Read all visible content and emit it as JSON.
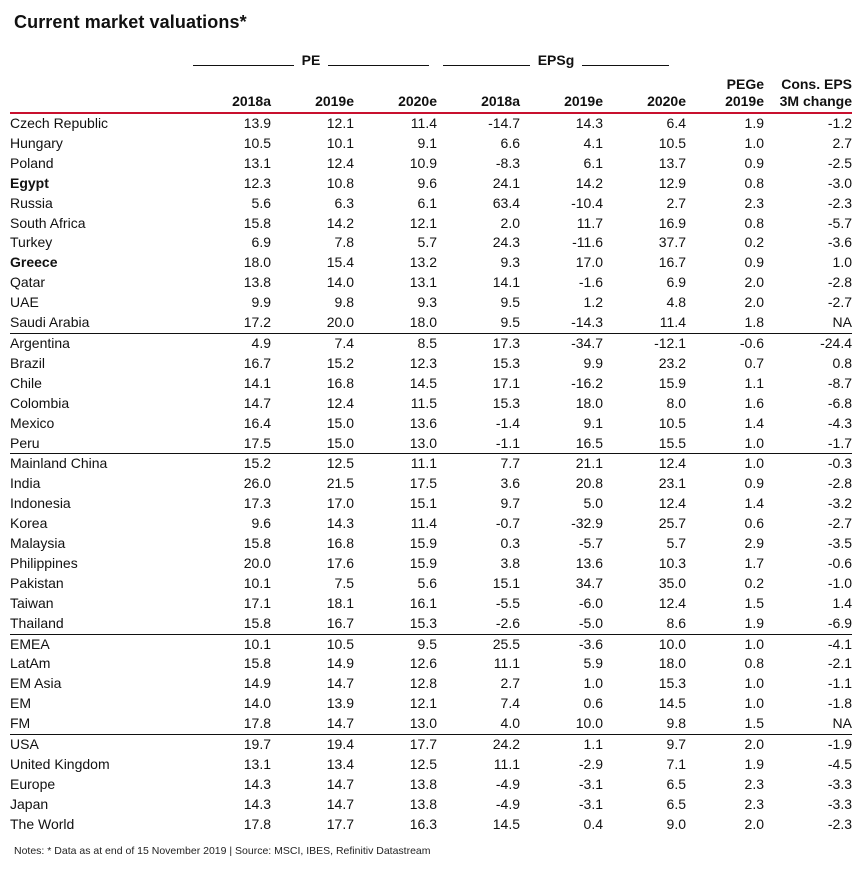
{
  "title": "Current market valuations*",
  "groups": {
    "pe": "PE",
    "epsg": "EPSg"
  },
  "columns": [
    {
      "line1": "",
      "line2": "2018a"
    },
    {
      "line1": "",
      "line2": "2019e"
    },
    {
      "line1": "",
      "line2": "2020e"
    },
    {
      "line1": "",
      "line2": "2018a"
    },
    {
      "line1": "",
      "line2": "2019e"
    },
    {
      "line1": "",
      "line2": "2020e"
    },
    {
      "line1": "PEGe",
      "line2": "2019e"
    },
    {
      "line1": "Cons. EPS",
      "line2": "3M change"
    }
  ],
  "rows": [
    {
      "name": "Czech Republic",
      "bold": false,
      "sep": false,
      "values": [
        "13.9",
        "12.1",
        "11.4",
        "-14.7",
        "14.3",
        "6.4",
        "1.9",
        "-1.2"
      ]
    },
    {
      "name": "Hungary",
      "bold": false,
      "sep": false,
      "values": [
        "10.5",
        "10.1",
        "9.1",
        "6.6",
        "4.1",
        "10.5",
        "1.0",
        "2.7"
      ]
    },
    {
      "name": "Poland",
      "bold": false,
      "sep": false,
      "values": [
        "13.1",
        "12.4",
        "10.9",
        "-8.3",
        "6.1",
        "13.7",
        "0.9",
        "-2.5"
      ]
    },
    {
      "name": "Egypt",
      "bold": true,
      "sep": false,
      "values": [
        "12.3",
        "10.8",
        "9.6",
        "24.1",
        "14.2",
        "12.9",
        "0.8",
        "-3.0"
      ]
    },
    {
      "name": "Russia",
      "bold": false,
      "sep": false,
      "values": [
        "5.6",
        "6.3",
        "6.1",
        "63.4",
        "-10.4",
        "2.7",
        "2.3",
        "-2.3"
      ]
    },
    {
      "name": "South Africa",
      "bold": false,
      "sep": false,
      "values": [
        "15.8",
        "14.2",
        "12.1",
        "2.0",
        "11.7",
        "16.9",
        "0.8",
        "-5.7"
      ]
    },
    {
      "name": "Turkey",
      "bold": false,
      "sep": false,
      "values": [
        "6.9",
        "7.8",
        "5.7",
        "24.3",
        "-11.6",
        "37.7",
        "0.2",
        "-3.6"
      ]
    },
    {
      "name": "Greece",
      "bold": true,
      "sep": false,
      "values": [
        "18.0",
        "15.4",
        "13.2",
        "9.3",
        "17.0",
        "16.7",
        "0.9",
        "1.0"
      ]
    },
    {
      "name": "Qatar",
      "bold": false,
      "sep": false,
      "values": [
        "13.8",
        "14.0",
        "13.1",
        "14.1",
        "-1.6",
        "6.9",
        "2.0",
        "-2.8"
      ]
    },
    {
      "name": "UAE",
      "bold": false,
      "sep": false,
      "values": [
        "9.9",
        "9.8",
        "9.3",
        "9.5",
        "1.2",
        "4.8",
        "2.0",
        "-2.7"
      ]
    },
    {
      "name": "Saudi Arabia",
      "bold": false,
      "sep": false,
      "values": [
        "17.2",
        "20.0",
        "18.0",
        "9.5",
        "-14.3",
        "11.4",
        "1.8",
        "NA"
      ]
    },
    {
      "name": "Argentina",
      "bold": false,
      "sep": true,
      "values": [
        "4.9",
        "7.4",
        "8.5",
        "17.3",
        "-34.7",
        "-12.1",
        "-0.6",
        "-24.4"
      ]
    },
    {
      "name": "Brazil",
      "bold": false,
      "sep": false,
      "values": [
        "16.7",
        "15.2",
        "12.3",
        "15.3",
        "9.9",
        "23.2",
        "0.7",
        "0.8"
      ]
    },
    {
      "name": "Chile",
      "bold": false,
      "sep": false,
      "values": [
        "14.1",
        "16.8",
        "14.5",
        "17.1",
        "-16.2",
        "15.9",
        "1.1",
        "-8.7"
      ]
    },
    {
      "name": "Colombia",
      "bold": false,
      "sep": false,
      "values": [
        "14.7",
        "12.4",
        "11.5",
        "15.3",
        "18.0",
        "8.0",
        "1.6",
        "-6.8"
      ]
    },
    {
      "name": "Mexico",
      "bold": false,
      "sep": false,
      "values": [
        "16.4",
        "15.0",
        "13.6",
        "-1.4",
        "9.1",
        "10.5",
        "1.4",
        "-4.3"
      ]
    },
    {
      "name": "Peru",
      "bold": false,
      "sep": false,
      "values": [
        "17.5",
        "15.0",
        "13.0",
        "-1.1",
        "16.5",
        "15.5",
        "1.0",
        "-1.7"
      ]
    },
    {
      "name": "Mainland China",
      "bold": false,
      "sep": true,
      "values": [
        "15.2",
        "12.5",
        "11.1",
        "7.7",
        "21.1",
        "12.4",
        "1.0",
        "-0.3"
      ]
    },
    {
      "name": "India",
      "bold": false,
      "sep": false,
      "values": [
        "26.0",
        "21.5",
        "17.5",
        "3.6",
        "20.8",
        "23.1",
        "0.9",
        "-2.8"
      ]
    },
    {
      "name": "Indonesia",
      "bold": false,
      "sep": false,
      "values": [
        "17.3",
        "17.0",
        "15.1",
        "9.7",
        "5.0",
        "12.4",
        "1.4",
        "-3.2"
      ]
    },
    {
      "name": "Korea",
      "bold": false,
      "sep": false,
      "values": [
        "9.6",
        "14.3",
        "11.4",
        "-0.7",
        "-32.9",
        "25.7",
        "0.6",
        "-2.7"
      ]
    },
    {
      "name": "Malaysia",
      "bold": false,
      "sep": false,
      "values": [
        "15.8",
        "16.8",
        "15.9",
        "0.3",
        "-5.7",
        "5.7",
        "2.9",
        "-3.5"
      ]
    },
    {
      "name": "Philippines",
      "bold": false,
      "sep": false,
      "values": [
        "20.0",
        "17.6",
        "15.9",
        "3.8",
        "13.6",
        "10.3",
        "1.7",
        "-0.6"
      ]
    },
    {
      "name": "Pakistan",
      "bold": false,
      "sep": false,
      "values": [
        "10.1",
        "7.5",
        "5.6",
        "15.1",
        "34.7",
        "35.0",
        "0.2",
        "-1.0"
      ]
    },
    {
      "name": "Taiwan",
      "bold": false,
      "sep": false,
      "values": [
        "17.1",
        "18.1",
        "16.1",
        "-5.5",
        "-6.0",
        "12.4",
        "1.5",
        "1.4"
      ]
    },
    {
      "name": "Thailand",
      "bold": false,
      "sep": false,
      "values": [
        "15.8",
        "16.7",
        "15.3",
        "-2.6",
        "-5.0",
        "8.6",
        "1.9",
        "-6.9"
      ]
    },
    {
      "name": "EMEA",
      "bold": false,
      "sep": true,
      "values": [
        "10.1",
        "10.5",
        "9.5",
        "25.5",
        "-3.6",
        "10.0",
        "1.0",
        "-4.1"
      ]
    },
    {
      "name": "LatAm",
      "bold": false,
      "sep": false,
      "values": [
        "15.8",
        "14.9",
        "12.6",
        "11.1",
        "5.9",
        "18.0",
        "0.8",
        "-2.1"
      ]
    },
    {
      "name": "EM Asia",
      "bold": false,
      "sep": false,
      "values": [
        "14.9",
        "14.7",
        "12.8",
        "2.7",
        "1.0",
        "15.3",
        "1.0",
        "-1.1"
      ]
    },
    {
      "name": "EM",
      "bold": false,
      "sep": false,
      "values": [
        "14.0",
        "13.9",
        "12.1",
        "7.4",
        "0.6",
        "14.5",
        "1.0",
        "-1.8"
      ]
    },
    {
      "name": "FM",
      "bold": false,
      "sep": false,
      "values": [
        "17.8",
        "14.7",
        "13.0",
        "4.0",
        "10.0",
        "9.8",
        "1.5",
        "NA"
      ]
    },
    {
      "name": "USA",
      "bold": false,
      "sep": true,
      "values": [
        "19.7",
        "19.4",
        "17.7",
        "24.2",
        "1.1",
        "9.7",
        "2.0",
        "-1.9"
      ]
    },
    {
      "name": "United Kingdom",
      "bold": false,
      "sep": false,
      "values": [
        "13.1",
        "13.4",
        "12.5",
        "11.1",
        "-2.9",
        "7.1",
        "1.9",
        "-4.5"
      ]
    },
    {
      "name": "Europe",
      "bold": false,
      "sep": false,
      "values": [
        "14.3",
        "14.7",
        "13.8",
        "-4.9",
        "-3.1",
        "6.5",
        "2.3",
        "-3.3"
      ]
    },
    {
      "name": "Japan",
      "bold": false,
      "sep": false,
      "values": [
        "14.3",
        "14.7",
        "13.8",
        "-4.9",
        "-3.1",
        "6.5",
        "2.3",
        "-3.3"
      ]
    },
    {
      "name": "The World",
      "bold": false,
      "sep": false,
      "values": [
        "17.8",
        "17.7",
        "16.3",
        "14.5",
        "0.4",
        "9.0",
        "2.0",
        "-2.3"
      ]
    }
  ],
  "notes": "Notes: * Data as at end of 15 November 2019 | Source: MSCI, IBES, Refinitiv Datastream",
  "colors": {
    "header_rule": "#c8102e",
    "text": "#111111"
  }
}
